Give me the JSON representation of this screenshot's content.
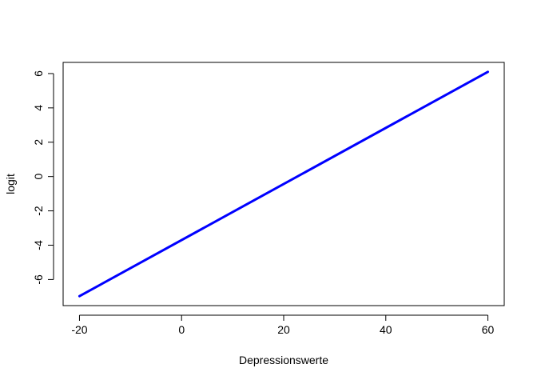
{
  "chart_data": {
    "type": "line",
    "title": "",
    "xlabel": "Depressionswerte",
    "ylabel": "logit",
    "xlim": [
      -23.2,
      63.2
    ],
    "ylim": [
      -7.52,
      6.65
    ],
    "xticks": [
      -20,
      0,
      20,
      40,
      60
    ],
    "xtick_labels": [
      "-20",
      "0",
      "20",
      "40",
      "60"
    ],
    "yticks": [
      -6,
      -4,
      -2,
      0,
      2,
      4,
      6
    ],
    "ytick_labels": [
      "-6",
      "-4",
      "-2",
      "0",
      "2",
      "4",
      "6"
    ],
    "grid": false,
    "legend": "none",
    "series": [
      {
        "color": "#0000ff",
        "x": [
          -20,
          60
        ],
        "y": [
          -6.97,
          6.1
        ]
      }
    ]
  }
}
